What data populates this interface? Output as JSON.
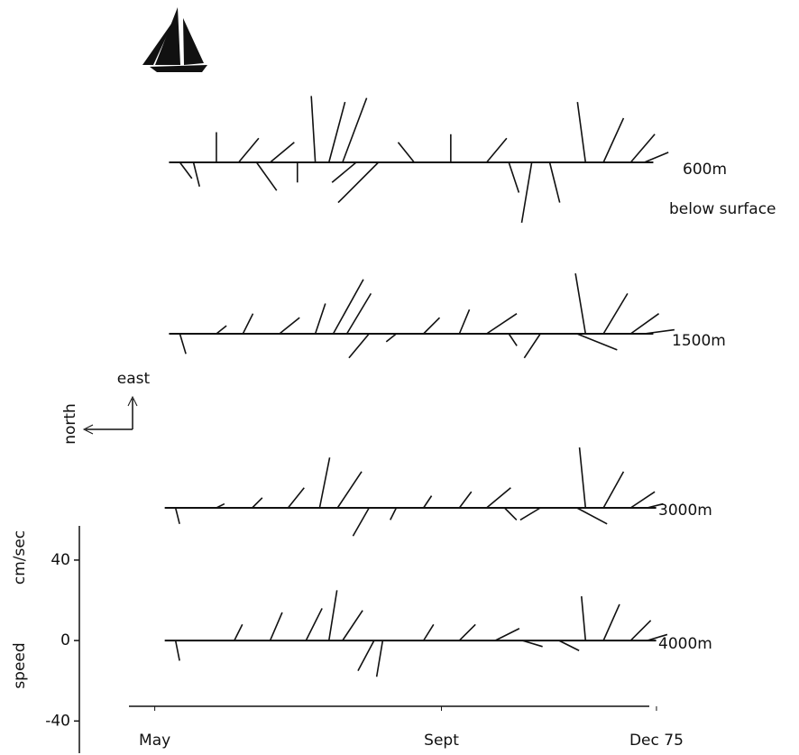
{
  "chart_data": {
    "type": "stick",
    "annotation": "below surface",
    "compass": {
      "up": "east",
      "left": "north"
    },
    "ylabel": [
      "speed",
      "cm/sec"
    ],
    "color": "#111111",
    "xlim": [
      4.64,
      11.9
    ],
    "xticks": [
      {
        "value": 5,
        "label": "May"
      },
      {
        "value": 9,
        "label": "Sept"
      },
      {
        "value": 12,
        "label": "Dec 75"
      }
    ],
    "ylim": [
      -56,
      57
    ],
    "yticks": [
      -40,
      0,
      40
    ],
    "series": [
      {
        "name": "600m",
        "x": [
          5.35,
          5.54,
          5.86,
          6.17,
          6.42,
          6.61,
          6.99,
          7.24,
          7.43,
          7.62,
          7.81,
          8.12,
          8.62,
          9.13,
          9.63,
          9.94,
          10.26,
          10.51,
          11.01,
          11.26,
          11.64,
          11.83
        ],
        "east": [
          -8,
          -12,
          15,
          12,
          -14,
          10,
          -10,
          33,
          30,
          32,
          -10,
          -20,
          10,
          14,
          12,
          -15,
          -30,
          -20,
          30,
          22,
          14,
          5
        ],
        "north": [
          -6,
          -3,
          0,
          -10,
          -10,
          -12,
          0,
          2,
          -8,
          -12,
          12,
          20,
          8,
          0,
          -10,
          -5,
          5,
          -5,
          4,
          -10,
          -12,
          -12
        ]
      },
      {
        "name": "1500m",
        "x": [
          5.35,
          5.86,
          6.23,
          6.74,
          7.24,
          7.49,
          7.68,
          7.99,
          8.37,
          8.75,
          9.25,
          9.63,
          9.94,
          10.38,
          10.89,
          11.01,
          11.26,
          11.64,
          11.83
        ],
        "east": [
          -10,
          4,
          10,
          8,
          15,
          27,
          20,
          -12,
          -4,
          8,
          12,
          10,
          -6,
          -12,
          -8,
          30,
          20,
          10,
          2
        ],
        "north": [
          -3,
          -5,
          -5,
          -10,
          -5,
          -15,
          -12,
          10,
          5,
          -8,
          -5,
          -15,
          -4,
          8,
          -20,
          5,
          -12,
          -14,
          -15
        ]
      },
      {
        "name": "3000m",
        "x": [
          5.29,
          5.86,
          6.36,
          6.86,
          7.3,
          7.55,
          7.99,
          8.37,
          8.75,
          9.25,
          9.63,
          9.88,
          10.38,
          10.89,
          11.01,
          11.26,
          11.64,
          11.87
        ],
        "east": [
          -8,
          2,
          5,
          10,
          25,
          18,
          -14,
          -6,
          6,
          8,
          10,
          -6,
          -6,
          -8,
          30,
          18,
          8,
          2
        ],
        "north": [
          -2,
          -4,
          -5,
          -8,
          -5,
          -12,
          8,
          3,
          -4,
          -6,
          -12,
          -6,
          10,
          -15,
          3,
          -10,
          -12,
          -8
        ]
      },
      {
        "name": "4000m",
        "x": [
          5.29,
          6.11,
          6.61,
          7.11,
          7.43,
          7.62,
          8.06,
          8.18,
          8.75,
          9.25,
          9.75,
          10.13,
          10.64,
          11.01,
          11.26,
          11.64,
          11.87
        ],
        "east": [
          -10,
          8,
          14,
          16,
          25,
          15,
          -15,
          -18,
          8,
          8,
          6,
          -3,
          -5,
          22,
          18,
          10,
          3
        ],
        "north": [
          -2,
          -4,
          -6,
          -8,
          -4,
          -10,
          8,
          3,
          -5,
          -8,
          -12,
          -10,
          -10,
          2,
          -8,
          -10,
          -10
        ]
      }
    ]
  }
}
